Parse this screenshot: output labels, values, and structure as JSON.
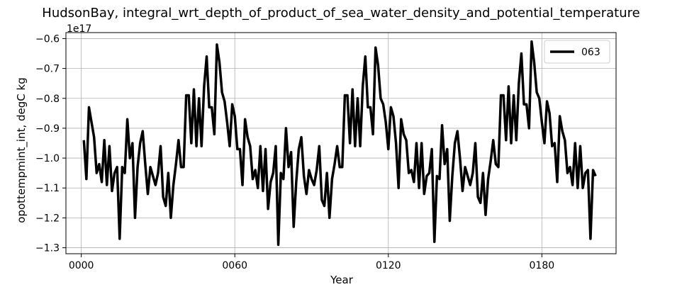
{
  "chart_data": {
    "type": "line",
    "title": "HudsonBay, integral_wrt_depth_of_product_of_sea_water_density_and_potential_temperature",
    "xlabel": "Year",
    "ylabel": "opottempmint_int, degC kg",
    "y_offset_text": "1e17",
    "xlim": [
      -6,
      209
    ],
    "ylim": [
      -1.32,
      -0.58
    ],
    "xticks": [
      {
        "value": 0,
        "label": "0000"
      },
      {
        "value": 60,
        "label": "0060"
      },
      {
        "value": 120,
        "label": "0120"
      },
      {
        "value": 180,
        "label": "0180"
      }
    ],
    "yticks": [
      {
        "value": -0.6,
        "label": "−0.6"
      },
      {
        "value": -0.7,
        "label": "−0.7"
      },
      {
        "value": -0.8,
        "label": "−0.8"
      },
      {
        "value": -0.9,
        "label": "−0.9"
      },
      {
        "value": -1.0,
        "label": "−1.0"
      },
      {
        "value": -1.1,
        "label": "−1.1"
      },
      {
        "value": -1.2,
        "label": "−1.2"
      },
      {
        "value": -1.3,
        "label": "−1.3"
      }
    ],
    "grid": true,
    "legend_position": "top-right",
    "series": [
      {
        "name": "063",
        "color": "#000000",
        "x_start": 1,
        "x_step": 1,
        "values": [
          -0.94,
          -1.07,
          -0.83,
          -0.88,
          -0.93,
          -1.05,
          -1.02,
          -1.08,
          -0.94,
          -1.09,
          -0.96,
          -1.11,
          -1.05,
          -1.03,
          -1.27,
          -1.03,
          -1.05,
          -0.87,
          -1.0,
          -0.95,
          -1.2,
          -1.03,
          -0.95,
          -0.91,
          -1.02,
          -1.12,
          -1.03,
          -1.06,
          -1.09,
          -1.05,
          -0.96,
          -1.13,
          -1.16,
          -1.05,
          -1.2,
          -1.09,
          -1.02,
          -0.94,
          -1.03,
          -1.03,
          -0.79,
          -0.79,
          -0.95,
          -0.77,
          -0.96,
          -0.8,
          -0.96,
          -0.76,
          -0.66,
          -0.83,
          -0.83,
          -0.92,
          -0.62,
          -0.68,
          -0.78,
          -0.81,
          -0.88,
          -0.96,
          -0.82,
          -0.86,
          -0.97,
          -0.97,
          -1.09,
          -0.87,
          -0.93,
          -0.96,
          -1.07,
          -1.04,
          -1.1,
          -0.96,
          -1.11,
          -0.97,
          -1.17,
          -1.08,
          -1.05,
          -0.96,
          -1.29,
          -1.05,
          -1.07,
          -0.9,
          -1.03,
          -0.98,
          -1.23,
          -1.08,
          -0.97,
          -0.93,
          -1.06,
          -1.12,
          -1.04,
          -1.07,
          -1.09,
          -1.04,
          -0.96,
          -1.14,
          -1.16,
          -1.05,
          -1.2,
          -1.07,
          -1.02,
          -0.96,
          -1.03,
          -1.03,
          -0.79,
          -0.79,
          -0.95,
          -0.77,
          -0.96,
          -0.8,
          -0.96,
          -0.76,
          -0.66,
          -0.83,
          -0.83,
          -0.92,
          -0.63,
          -0.69,
          -0.8,
          -0.82,
          -0.88,
          -0.97,
          -0.83,
          -0.86,
          -0.95,
          -1.1,
          -0.87,
          -0.92,
          -0.94,
          -1.05,
          -1.04,
          -1.08,
          -0.95,
          -1.1,
          -0.95,
          -1.12,
          -1.06,
          -1.05,
          -0.97,
          -1.28,
          -1.06,
          -1.07,
          -0.89,
          -1.02,
          -0.97,
          -1.21,
          -1.06,
          -0.95,
          -0.91,
          -1.0,
          -1.11,
          -1.03,
          -1.06,
          -1.09,
          -1.05,
          -0.95,
          -1.13,
          -1.15,
          -1.05,
          -1.19,
          -1.07,
          -1.01,
          -0.94,
          -1.02,
          -1.03,
          -0.79,
          -0.79,
          -0.94,
          -0.76,
          -0.95,
          -0.79,
          -0.94,
          -0.75,
          -0.65,
          -0.82,
          -0.82,
          -0.9,
          -0.61,
          -0.68,
          -0.78,
          -0.8,
          -0.88,
          -0.95,
          -0.81,
          -0.85,
          -0.96,
          -0.95,
          -1.08,
          -0.86,
          -0.91,
          -0.94,
          -1.05,
          -1.03,
          -1.09,
          -0.95,
          -1.1,
          -0.96,
          -1.1,
          -1.05,
          -1.04,
          -1.27,
          -1.04,
          -1.06
        ]
      }
    ]
  }
}
